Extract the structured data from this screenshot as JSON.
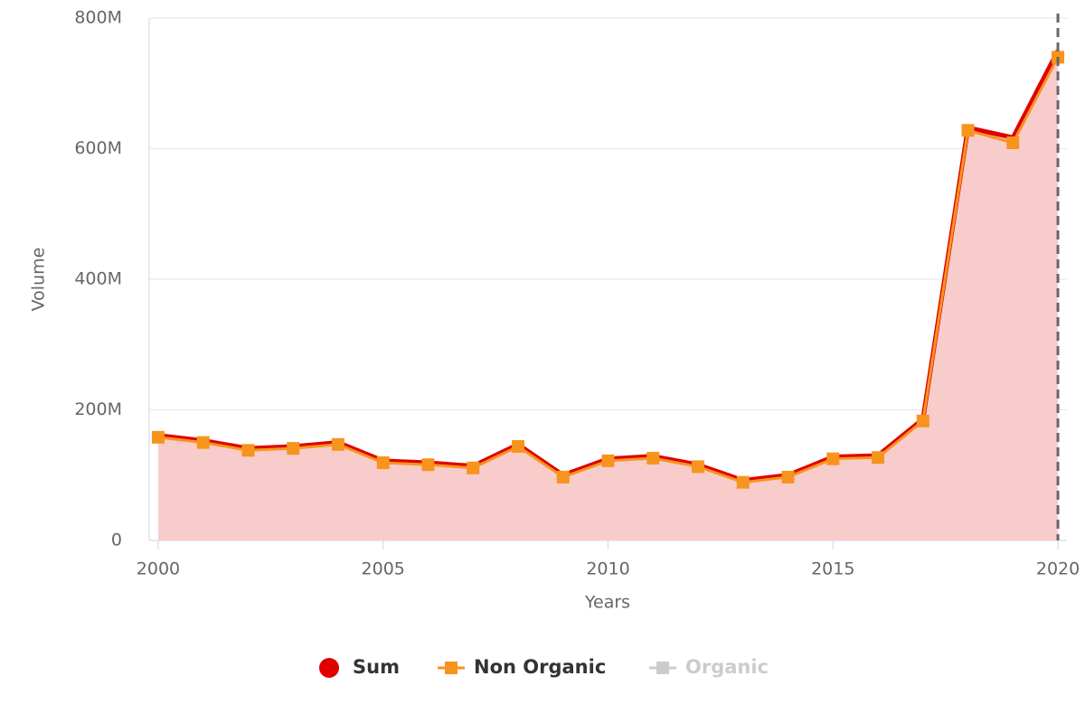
{
  "chart_data": {
    "type": "line",
    "x_label": "Years",
    "y_label": "Volume",
    "x": [
      2000,
      2001,
      2002,
      2003,
      2004,
      2005,
      2006,
      2007,
      2008,
      2009,
      2010,
      2011,
      2012,
      2013,
      2014,
      2015,
      2016,
      2017,
      2018,
      2019,
      2020
    ],
    "series": [
      {
        "name": "Sum",
        "color": "#e00000",
        "area_color": "#f9cccc",
        "marker": "circle",
        "visible": true,
        "values": [
          161000000,
          153000000,
          141000000,
          144000000,
          150000000,
          122000000,
          119000000,
          114000000,
          147000000,
          100000000,
          125000000,
          129000000,
          116000000,
          92000000,
          100000000,
          128000000,
          130000000,
          186000000,
          632000000,
          617000000,
          750000000
        ]
      },
      {
        "name": "Non Organic",
        "color": "#f7941d",
        "marker": "square",
        "visible": true,
        "values": [
          158000000,
          150000000,
          138000000,
          141000000,
          147000000,
          119000000,
          116000000,
          111000000,
          144000000,
          97000000,
          122000000,
          126000000,
          113000000,
          89000000,
          97000000,
          125000000,
          127000000,
          183000000,
          628000000,
          609000000,
          740000000
        ]
      },
      {
        "name": "Organic",
        "color": "#cccccc",
        "marker": "square",
        "visible": false,
        "values": [
          null,
          null,
          null,
          null,
          null,
          null,
          null,
          null,
          null,
          null,
          null,
          null,
          null,
          null,
          null,
          null,
          null,
          null,
          null,
          null,
          null
        ]
      }
    ],
    "xlim": [
      1999.8,
      2020.2
    ],
    "xticks": [
      2000,
      2005,
      2010,
      2015,
      2020
    ],
    "ylim": [
      0,
      800000000
    ],
    "yticks": [
      {
        "value": 0,
        "label": "0"
      },
      {
        "value": 200000000,
        "label": "200M"
      },
      {
        "value": 400000000,
        "label": "400M"
      },
      {
        "value": 600000000,
        "label": "600M"
      },
      {
        "value": 800000000,
        "label": "800M"
      }
    ],
    "grid": true,
    "plot_lines_x": [
      2020
    ],
    "legend": "bottom"
  }
}
